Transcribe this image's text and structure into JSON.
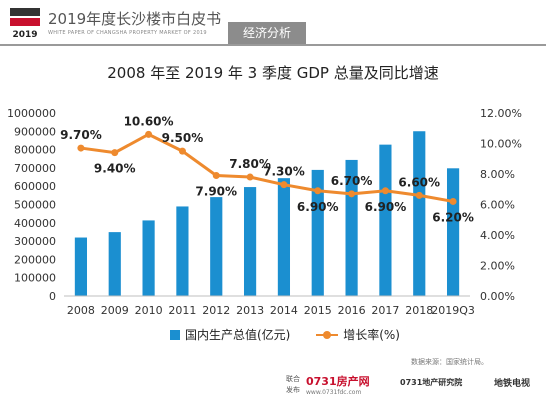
{
  "header": {
    "logo_line1": "2019",
    "title": "2019年度长沙楼市白皮书",
    "subtitle": "WHITE PAPER OF CHANGSHA PROPERTY MARKET OF 2019",
    "tag": "经济分析"
  },
  "footer": {
    "source": "数据来源：国家统计局。",
    "label_top": "联合",
    "label_bottom": "发布",
    "brand1": "0731房产网",
    "brand1_url": "www.0731fdc.com",
    "brand2": "0731地产研究院",
    "brand3": "地铁电视"
  },
  "colors": {
    "bar": "#1b8fd0",
    "line": "#ee8a2e",
    "accent_tag": "#8c8c8c"
  },
  "chart_data": {
    "type": "bar",
    "title": "2008 年至 2019 年 3 季度 GDP 总量及同比增速",
    "categories": [
      "2008",
      "2009",
      "2010",
      "2011",
      "2012",
      "2013",
      "2014",
      "2015",
      "2016",
      "2017",
      "2018",
      "2019Q3"
    ],
    "series": [
      {
        "name": "国内生产总值(亿元)",
        "type": "bar",
        "axis": "left",
        "values": [
          319516,
          349081,
          413030,
          489301,
          540367,
          595244,
          643974,
          689052,
          743586,
          827122,
          900309,
          697798
        ]
      },
      {
        "name": "增长率(%)",
        "type": "line",
        "axis": "right",
        "values": [
          9.7,
          9.4,
          10.6,
          9.5,
          7.9,
          7.8,
          7.3,
          6.9,
          6.7,
          6.9,
          6.6,
          6.2
        ],
        "labels": [
          "9.70%",
          "9.40%",
          "10.60%",
          "9.50%",
          "7.90%",
          "7.80%",
          "7.30%",
          "6.90%",
          "6.70%",
          "6.90%",
          "6.60%",
          "6.20%"
        ]
      }
    ],
    "ylim_left": [
      0,
      1000000
    ],
    "yticks_left": [
      "0",
      "100000",
      "200000",
      "300000",
      "400000",
      "500000",
      "600000",
      "700000",
      "800000",
      "900000",
      "1000000"
    ],
    "ylim_right": [
      0,
      12
    ],
    "yticks_right": [
      "0.00%",
      "2.00%",
      "4.00%",
      "6.00%",
      "8.00%",
      "10.00%",
      "12.00%"
    ],
    "grid": false,
    "legend": "bottom"
  }
}
